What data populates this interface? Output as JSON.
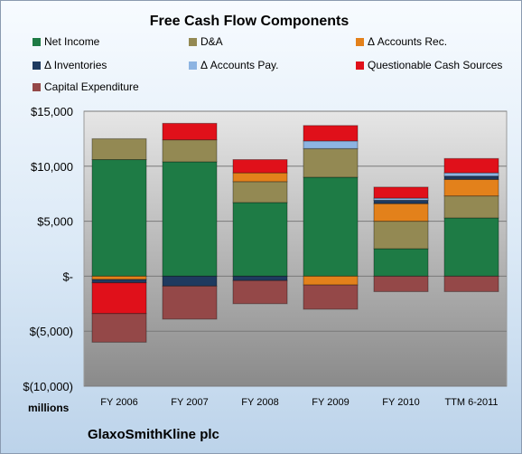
{
  "chart_data": {
    "type": "bar",
    "stacked": true,
    "title": "Free Cash Flow Components",
    "company": "GlaxoSmithKline plc",
    "units_label": "millions",
    "categories": [
      "FY 2006",
      "FY 2007",
      "FY 2008",
      "FY 2009",
      "FY 2010",
      "TTM 6-2011"
    ],
    "ylim": [
      -10000,
      15000
    ],
    "yticks": [
      {
        "value": 15000,
        "label": "$15,000"
      },
      {
        "value": 10000,
        "label": "$10,000"
      },
      {
        "value": 5000,
        "label": "$5,000"
      },
      {
        "value": 0,
        "label": "$-"
      },
      {
        "value": -5000,
        "label": "$(5,000)"
      },
      {
        "value": -10000,
        "label": "$(10,000)"
      }
    ],
    "grid": true,
    "legend_position": "top",
    "series": [
      {
        "name": "Net Income",
        "color": "#1e7b45",
        "values": [
          10600,
          10400,
          6700,
          9000,
          2500,
          5300
        ]
      },
      {
        "name": "D&A",
        "color": "#938953",
        "values": [
          1900,
          2000,
          1900,
          2600,
          2500,
          2000
        ]
      },
      {
        "name": "Δ Accounts Rec.",
        "color": "#e3811b",
        "values": [
          -300,
          0,
          800,
          -800,
          1600,
          1500
        ]
      },
      {
        "name": "Δ Inventories",
        "color": "#1f3a5f",
        "values": [
          -300,
          -900,
          -400,
          0,
          300,
          300
        ]
      },
      {
        "name": "Δ Accounts Pay.",
        "color": "#8db4e2",
        "values": [
          0,
          0,
          0,
          700,
          200,
          300
        ]
      },
      {
        "name": "Questionable Cash Sources",
        "color": "#e0101a",
        "values": [
          -2800,
          1500,
          1200,
          1400,
          1000,
          1300
        ]
      },
      {
        "name": "Capital Expenditure",
        "color": "#944848",
        "values": [
          -2600,
          -3000,
          -2100,
          -2200,
          -1400,
          -1400
        ]
      }
    ]
  }
}
